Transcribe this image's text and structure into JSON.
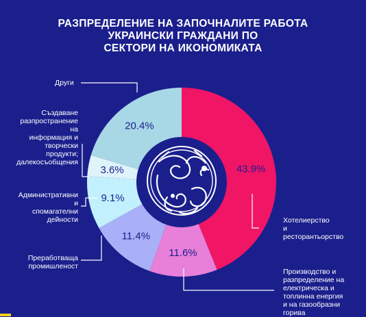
{
  "title_lines": [
    "РАЗПРЕДЕЛЕНИЕ НА ЗАПОЧНАЛИТЕ РАБОТА",
    "УКРАИНСКИ ГРАЖДАНИ ПО",
    "СЕКТОРИ НА ИКОНОМИКАТА"
  ],
  "chart_data": {
    "type": "pie",
    "title": "РАЗПРЕДЕЛЕНИЕ НА ЗАПОЧНАЛИТЕ РАБОТА УКРАИНСКИ ГРАЖДАНИ ПО СЕКТОРИ НА ИКОНОМИКАТА",
    "donut": true,
    "unit": "%",
    "slices": [
      {
        "label_lines": [
          "Хотелиерство",
          "и",
          "ресторантьорство"
        ],
        "value": 43.9,
        "value_label": "43.9%",
        "color": "#f01565"
      },
      {
        "label_lines": [
          "Производство и",
          "разпределение на",
          "електрическа и",
          "топлинна енергия",
          "и на газообразни",
          "горива"
        ],
        "value": 11.6,
        "value_label": "11.6%",
        "color": "#e87fd8"
      },
      {
        "label_lines": [
          "Преработваща",
          "промишленост"
        ],
        "value": 11.4,
        "value_label": "11.4%",
        "color": "#a9b0f7"
      },
      {
        "label_lines": [
          "Административни",
          "и",
          "спомагателни",
          "дейности"
        ],
        "value": 9.1,
        "value_label": "9.1%",
        "color": "#c2f0fc"
      },
      {
        "label_lines": [
          "Създаване",
          "разпространение",
          "на",
          "информация и",
          "творчески",
          "продукти;",
          "далекосъобщения"
        ],
        "value": 3.6,
        "value_label": "3.6%",
        "color": "#dff3fb"
      },
      {
        "label_lines": [
          "Други"
        ],
        "value": 20.4,
        "value_label": "20.4%",
        "color": "#a8d8e6"
      }
    ]
  },
  "colors": {
    "background": "#1b1f8c",
    "hole": "#1b1f8c",
    "value_text": "#1b1f8c",
    "leader_line": "#ffffff",
    "accent": "#f2d21b"
  },
  "logo": {
    "icon": "ornamental-circle-emblem-icon"
  }
}
